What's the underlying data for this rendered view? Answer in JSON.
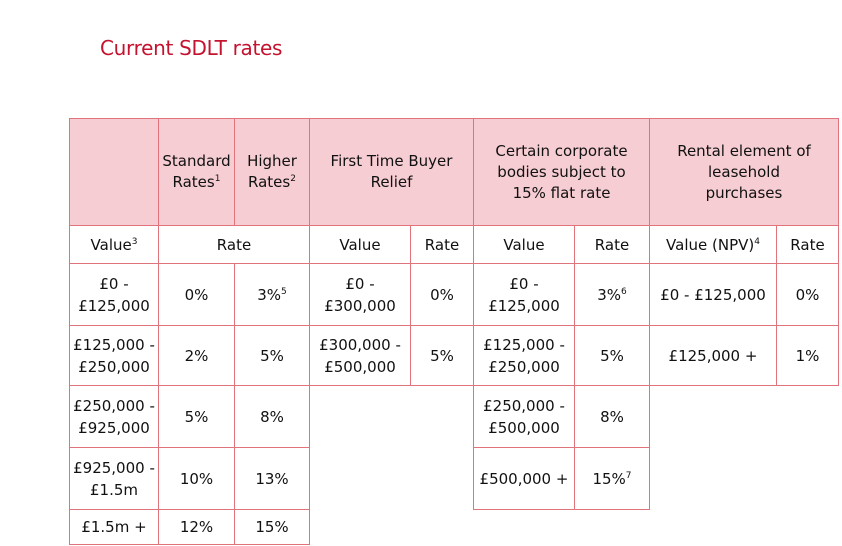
{
  "title": "Current SDLT rates",
  "colors": {
    "title": "#c4122f",
    "header_fill": "#f6cdd2",
    "border": "#e0737b"
  },
  "table": {
    "headers": [
      {
        "text": "",
        "sup": ""
      },
      {
        "text": "Standard Rates",
        "sup": "1"
      },
      {
        "text": "Higher Rates",
        "sup": "2"
      },
      {
        "text": "First Time Buyer Relief",
        "sup": ""
      },
      {
        "text": "Certain corporate bodies subject to 15% flat rate",
        "sup": ""
      },
      {
        "text": "Rental element of leasehold purchases",
        "sup": ""
      }
    ],
    "subheaders": [
      {
        "text": "Value",
        "sup": "3"
      },
      {
        "text": "Rate",
        "sup": ""
      },
      {
        "text": "Value",
        "sup": ""
      },
      {
        "text": "Rate",
        "sup": ""
      },
      {
        "text": "Value",
        "sup": ""
      },
      {
        "text": "Rate",
        "sup": ""
      },
      {
        "text": "Value (NPV)",
        "sup": "4"
      },
      {
        "text": "Rate",
        "sup": ""
      }
    ],
    "rows": [
      [
        {
          "text": "£0 - £125,000",
          "sup": ""
        },
        {
          "text": "0%",
          "sup": ""
        },
        {
          "text": "3%",
          "sup": "5"
        },
        {
          "text": "£0 - £300,000",
          "sup": ""
        },
        {
          "text": "0%",
          "sup": ""
        },
        {
          "text": "£0 - £125,000",
          "sup": ""
        },
        {
          "text": "3%",
          "sup": "6"
        },
        {
          "text": "£0 - £125,000",
          "sup": ""
        },
        {
          "text": "0%",
          "sup": ""
        }
      ],
      [
        {
          "text": "£125,000 - £250,000",
          "sup": ""
        },
        {
          "text": "2%",
          "sup": ""
        },
        {
          "text": "5%",
          "sup": ""
        },
        {
          "text": "£300,000 - £500,000",
          "sup": ""
        },
        {
          "text": "5%",
          "sup": ""
        },
        {
          "text": "£125,000 - £250,000",
          "sup": ""
        },
        {
          "text": "5%",
          "sup": ""
        },
        {
          "text": "£125,000 +",
          "sup": ""
        },
        {
          "text": "1%",
          "sup": ""
        }
      ],
      [
        {
          "text": "£250,000 - £925,000",
          "sup": ""
        },
        {
          "text": "5%",
          "sup": ""
        },
        {
          "text": "8%",
          "sup": ""
        },
        null,
        null,
        {
          "text": "£250,000 - £500,000",
          "sup": ""
        },
        {
          "text": "8%",
          "sup": ""
        },
        null,
        null
      ],
      [
        {
          "text": "£925,000 - £1.5m",
          "sup": ""
        },
        {
          "text": "10%",
          "sup": ""
        },
        {
          "text": "13%",
          "sup": ""
        },
        null,
        null,
        {
          "text": "£500,000 +",
          "sup": ""
        },
        {
          "text": "15%",
          "sup": "7"
        },
        null,
        null
      ],
      [
        {
          "text": "£1.5m +",
          "sup": ""
        },
        {
          "text": "12%",
          "sup": ""
        },
        {
          "text": "15%",
          "sup": ""
        },
        null,
        null,
        null,
        null,
        null,
        null
      ]
    ]
  }
}
